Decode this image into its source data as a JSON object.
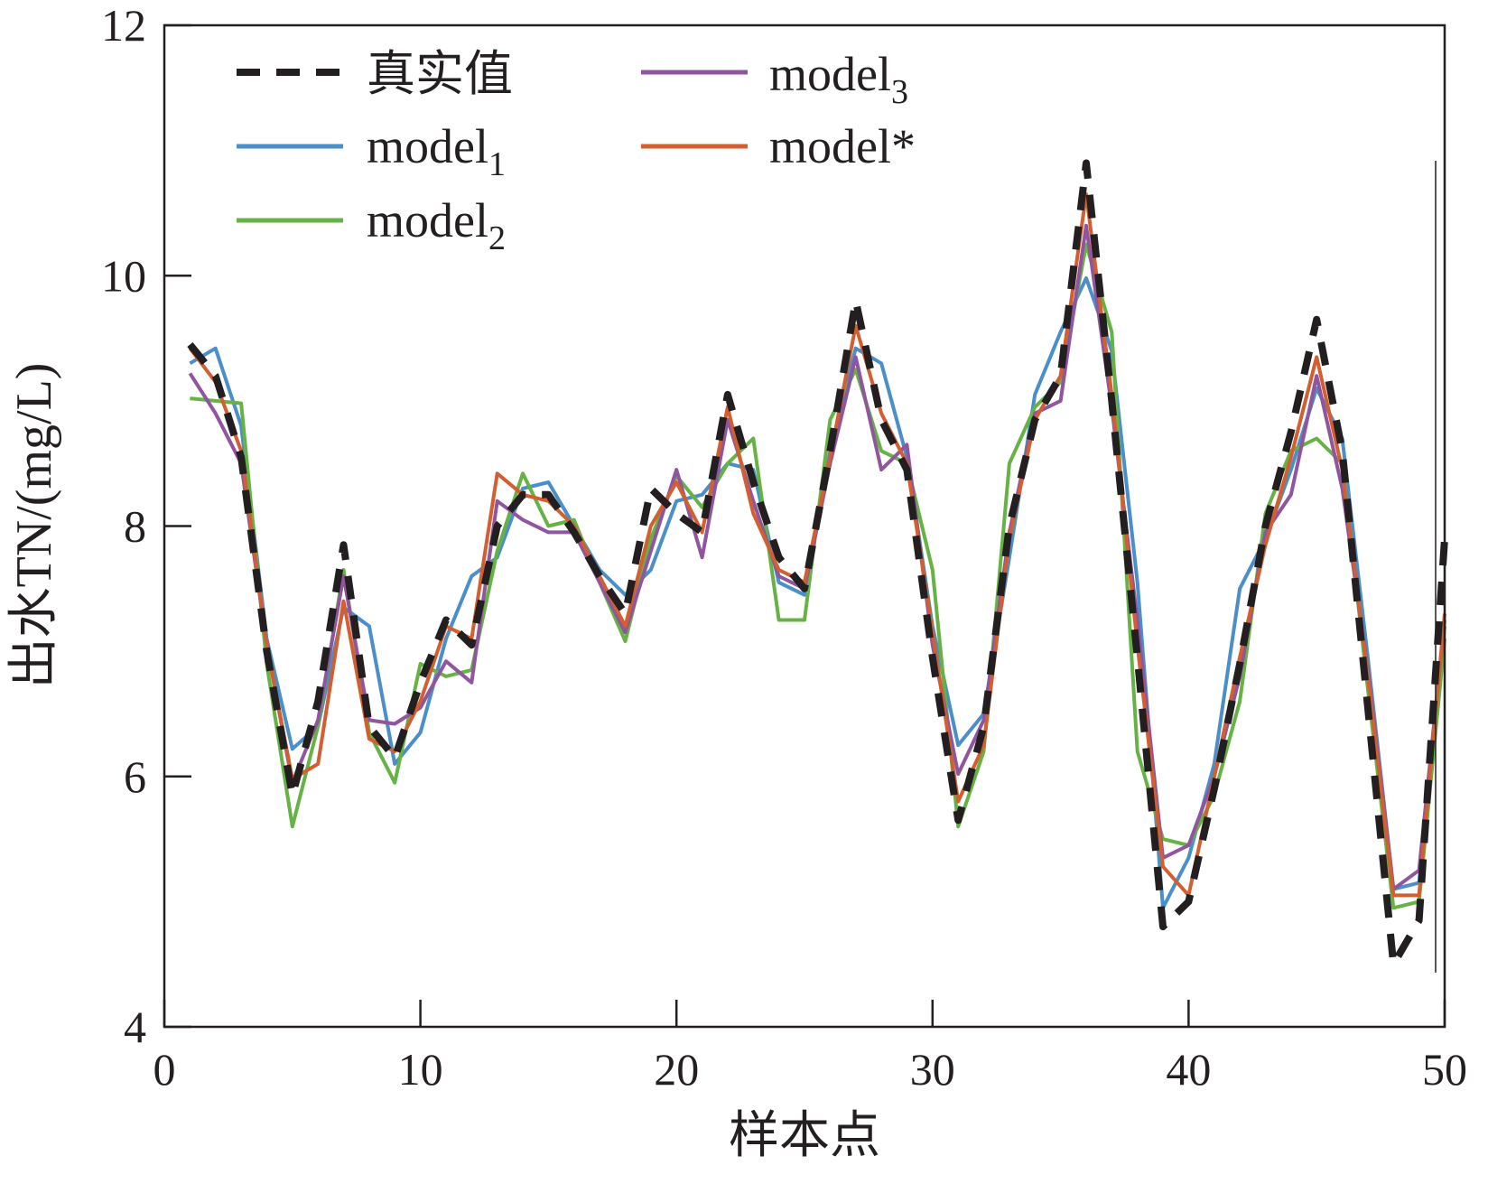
{
  "chart_data": {
    "type": "line",
    "title": "",
    "xlabel": "样本点",
    "ylabel": "出水TN/(mg/L)",
    "xlim": [
      0,
      50
    ],
    "ylim": [
      4,
      12
    ],
    "xticks": [
      "0",
      "10",
      "20",
      "30",
      "40",
      "50"
    ],
    "yticks": [
      "4",
      "6",
      "8",
      "10",
      "12"
    ],
    "legend_position": "top-left",
    "x": [
      1,
      2,
      3,
      4,
      5,
      6,
      7,
      8,
      9,
      10,
      11,
      12,
      13,
      14,
      15,
      16,
      17,
      18,
      19,
      20,
      21,
      22,
      23,
      24,
      25,
      26,
      27,
      28,
      29,
      30,
      31,
      32,
      33,
      34,
      35,
      36,
      37,
      38,
      39,
      40,
      41,
      42,
      43,
      44,
      45,
      46,
      47,
      48,
      49,
      50
    ],
    "series": [
      {
        "name": "真实值",
        "style": "dashed",
        "color": "#231f20",
        "values": [
          9.45,
          9.2,
          8.55,
          7.0,
          5.85,
          6.6,
          7.85,
          6.4,
          6.15,
          6.75,
          7.25,
          7.05,
          8.0,
          8.25,
          8.25,
          7.95,
          7.6,
          7.3,
          8.3,
          8.1,
          7.95,
          9.05,
          8.35,
          7.75,
          7.5,
          8.6,
          9.8,
          8.85,
          8.45,
          6.95,
          5.65,
          6.4,
          8.0,
          8.85,
          9.2,
          10.9,
          9.0,
          6.95,
          4.8,
          5.0,
          5.9,
          6.9,
          8.0,
          8.75,
          9.65,
          8.6,
          6.55,
          4.5,
          4.85,
          7.9
        ]
      },
      {
        "name": "model1",
        "label_main": "model",
        "label_sub": "1",
        "style": "solid",
        "color": "#4a8fc9",
        "values": [
          9.3,
          9.42,
          8.8,
          7.1,
          6.22,
          6.4,
          7.35,
          7.2,
          6.1,
          6.35,
          7.1,
          7.6,
          7.75,
          8.3,
          8.35,
          8.0,
          7.65,
          7.45,
          7.65,
          8.2,
          8.25,
          8.5,
          8.45,
          7.55,
          7.45,
          8.6,
          9.42,
          9.3,
          8.55,
          7.2,
          6.25,
          6.5,
          7.75,
          9.05,
          9.55,
          9.98,
          9.4,
          7.55,
          4.95,
          5.35,
          6.1,
          7.5,
          7.9,
          8.45,
          9.1,
          8.7,
          6.95,
          5.1,
          5.15,
          7.2
        ]
      },
      {
        "name": "model2",
        "label_main": "model",
        "label_sub": "2",
        "style": "solid",
        "color": "#66b245",
        "values": [
          9.02,
          9.0,
          8.98,
          6.9,
          5.6,
          6.4,
          7.65,
          6.35,
          5.95,
          6.9,
          6.8,
          6.85,
          7.8,
          8.42,
          8.0,
          8.05,
          7.55,
          7.08,
          7.9,
          8.4,
          8.15,
          8.5,
          8.7,
          7.25,
          7.25,
          8.85,
          9.25,
          8.6,
          8.5,
          7.65,
          5.6,
          6.2,
          8.5,
          8.95,
          9.15,
          10.25,
          9.55,
          6.2,
          5.5,
          5.45,
          5.85,
          6.6,
          8.1,
          8.6,
          8.7,
          8.5,
          6.7,
          4.95,
          5.0,
          7.1
        ]
      },
      {
        "name": "model3",
        "label_main": "model",
        "label_sub": "3",
        "style": "solid",
        "color": "#8f559f",
        "values": [
          9.22,
          8.9,
          8.5,
          7.05,
          5.95,
          6.45,
          7.6,
          6.45,
          6.42,
          6.55,
          6.92,
          6.75,
          8.2,
          8.05,
          7.95,
          7.95,
          7.55,
          7.15,
          7.8,
          8.45,
          7.75,
          8.85,
          8.2,
          7.6,
          7.5,
          8.5,
          9.35,
          8.45,
          8.65,
          7.05,
          6.02,
          6.45,
          7.95,
          8.9,
          9.0,
          10.4,
          8.95,
          7.25,
          5.35,
          5.45,
          6.0,
          6.8,
          7.95,
          8.25,
          9.2,
          8.3,
          6.85,
          5.1,
          5.25,
          7.25
        ]
      },
      {
        "name": "model*",
        "label_main": "model*",
        "label_sub": "",
        "style": "solid",
        "color": "#d35f31",
        "values": [
          9.42,
          9.15,
          8.6,
          7.05,
          5.98,
          6.1,
          7.4,
          6.3,
          6.2,
          6.6,
          7.2,
          7.1,
          8.42,
          8.25,
          8.2,
          8.0,
          7.6,
          7.2,
          8.0,
          8.35,
          7.95,
          8.95,
          8.1,
          7.65,
          7.55,
          8.55,
          9.6,
          8.9,
          8.5,
          7.15,
          5.8,
          6.25,
          7.9,
          8.85,
          9.2,
          10.65,
          9.05,
          7.05,
          5.28,
          5.05,
          6.0,
          6.95,
          7.85,
          8.55,
          9.35,
          8.45,
          6.8,
          5.05,
          5.05,
          7.3
        ]
      }
    ],
    "legend_entries": [
      "真实值",
      "model1",
      "model2",
      "model3",
      "model*"
    ]
  }
}
